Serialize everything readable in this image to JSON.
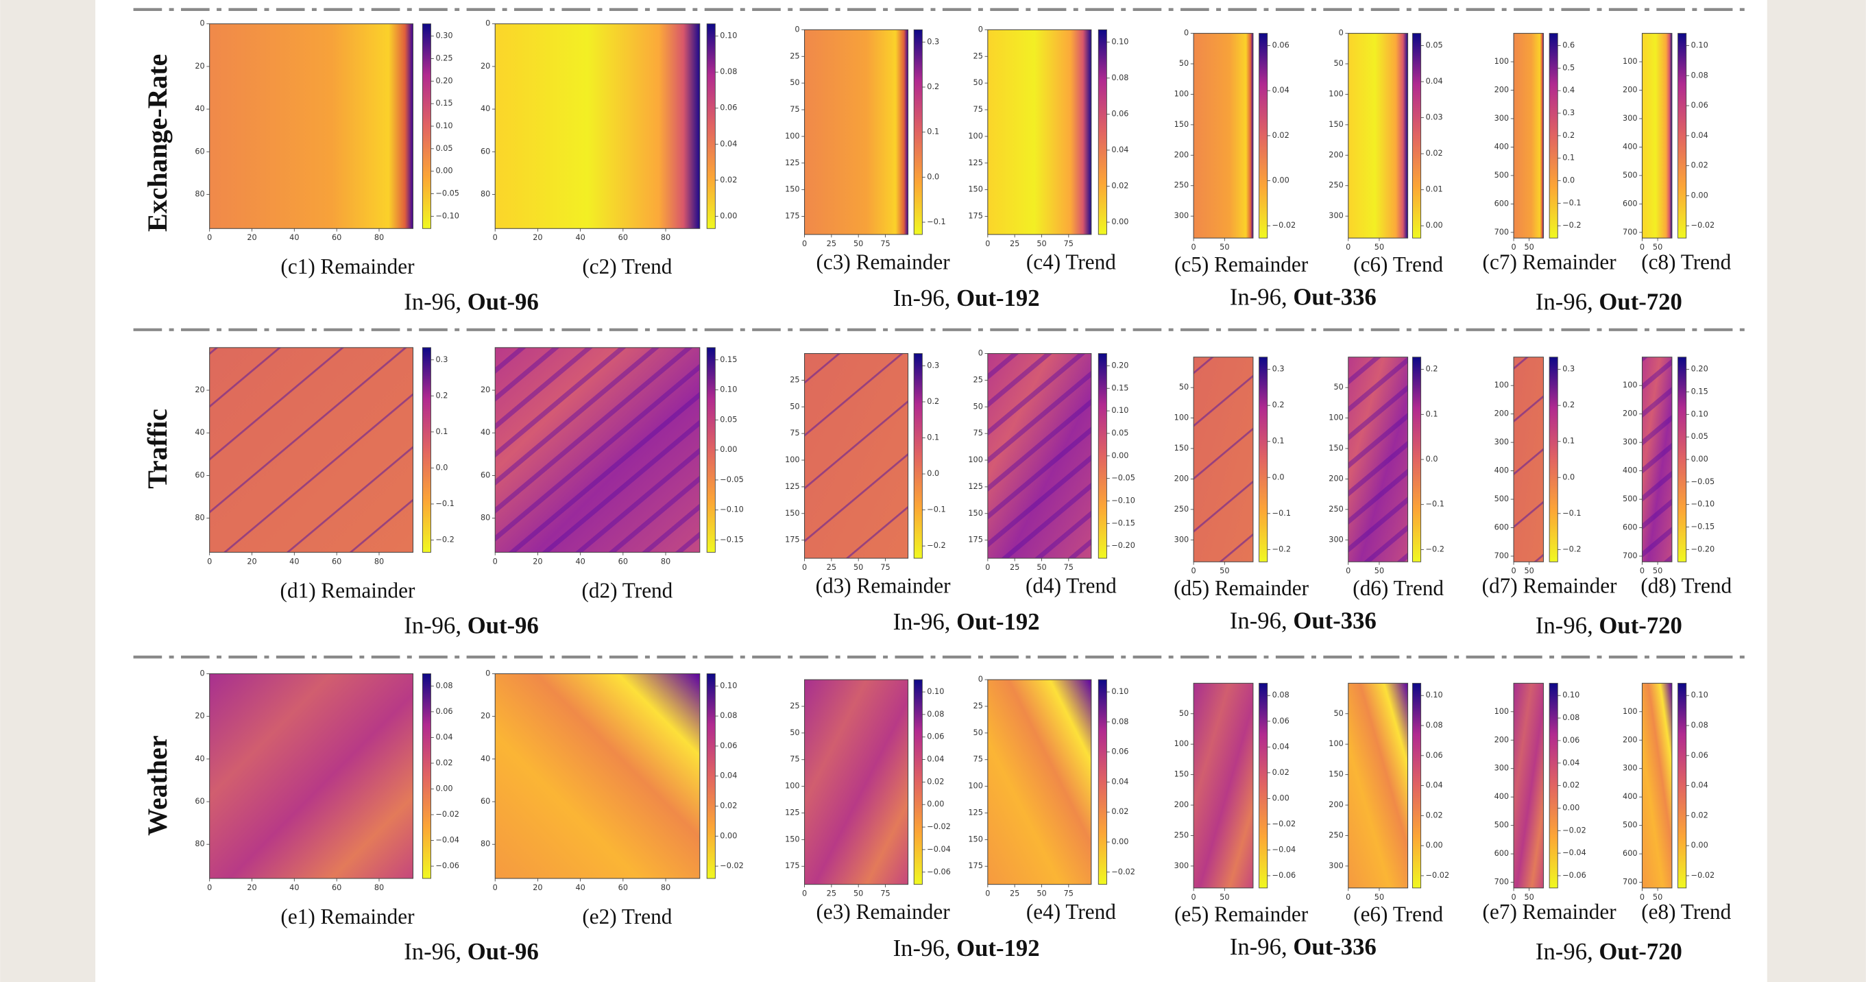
{
  "rows": [
    {
      "label": "Exchange-Rate",
      "groups": [
        {
          "setting": "In-96,",
          "horizon": "Out-96",
          "panels": [
            {
              "caption": "(c1) Remainder",
              "xticks": [
                "0",
                "20",
                "40",
                "60",
                "80"
              ],
              "yticks": [
                "0",
                "20",
                "40",
                "60",
                "80"
              ],
              "cbar": [
                "0.30",
                "0.25",
                "0.20",
                "0.15",
                "0.10",
                "0.05",
                "0.00",
                "−0.05",
                "−0.10"
              ]
            },
            {
              "caption": "(c2) Trend",
              "xticks": [
                "0",
                "20",
                "40",
                "60",
                "80"
              ],
              "yticks": [
                "0",
                "20",
                "40",
                "60",
                "80"
              ],
              "cbar": [
                "0.10",
                "0.08",
                "0.06",
                "0.04",
                "0.02",
                "0.00"
              ]
            }
          ]
        },
        {
          "setting": "In-96,",
          "horizon": "Out-192",
          "panels": [
            {
              "caption": "(c3) Remainder",
              "xticks": [
                "0",
                "25",
                "50",
                "75"
              ],
              "yticks": [
                "0",
                "25",
                "50",
                "75",
                "100",
                "125",
                "150",
                "175"
              ],
              "cbar": [
                "0.3",
                "0.2",
                "0.1",
                "0.0",
                "−0.1"
              ]
            },
            {
              "caption": "(c4) Trend",
              "xticks": [
                "0",
                "25",
                "50",
                "75"
              ],
              "yticks": [
                "0",
                "25",
                "50",
                "75",
                "100",
                "125",
                "150",
                "175"
              ],
              "cbar": [
                "0.10",
                "0.08",
                "0.06",
                "0.04",
                "0.02",
                "0.00"
              ]
            }
          ]
        },
        {
          "setting": "In-96,",
          "horizon": "Out-336",
          "panels": [
            {
              "caption": "(c5) Remainder",
              "xticks": [
                "0",
                "50"
              ],
              "yticks": [
                "0",
                "50",
                "100",
                "150",
                "200",
                "250",
                "300"
              ],
              "cbar": [
                "0.06",
                "0.04",
                "0.02",
                "0.00",
                "−0.02"
              ]
            },
            {
              "caption": "(c6) Trend",
              "xticks": [
                "0",
                "50"
              ],
              "yticks": [
                "0",
                "50",
                "100",
                "150",
                "200",
                "250",
                "300"
              ],
              "cbar": [
                "0.05",
                "0.04",
                "0.03",
                "0.02",
                "0.01",
                "0.00"
              ]
            }
          ]
        },
        {
          "setting": "In-96,",
          "horizon": "Out-720",
          "panels": [
            {
              "caption": "(c7) Remainder",
              "xticks": [
                "0",
                "50"
              ],
              "yticks": [
                "100",
                "200",
                "300",
                "400",
                "500",
                "600",
                "700"
              ],
              "cbar": [
                "0.6",
                "0.5",
                "0.4",
                "0.3",
                "0.2",
                "0.1",
                "0.0",
                "−0.1",
                "−0.2"
              ]
            },
            {
              "caption": "(c8) Trend",
              "xticks": [
                "0",
                "50"
              ],
              "yticks": [
                "100",
                "200",
                "300",
                "400",
                "500",
                "600",
                "700"
              ],
              "cbar": [
                "0.10",
                "0.08",
                "0.06",
                "0.04",
                "0.02",
                "0.00",
                "−0.02"
              ]
            }
          ]
        }
      ]
    },
    {
      "label": "Traffic",
      "groups": [
        {
          "setting": "In-96,",
          "horizon": "Out-96",
          "panels": [
            {
              "caption": "(d1) Remainder",
              "xticks": [
                "0",
                "20",
                "40",
                "60",
                "80"
              ],
              "yticks": [
                "20",
                "40",
                "60",
                "80"
              ],
              "cbar": [
                "0.3",
                "0.2",
                "0.1",
                "0.0",
                "−0.1",
                "−0.2"
              ]
            },
            {
              "caption": "(d2) Trend",
              "xticks": [
                "0",
                "20",
                "40",
                "60",
                "80"
              ],
              "yticks": [
                "20",
                "40",
                "60",
                "80"
              ],
              "cbar": [
                "0.15",
                "0.10",
                "0.05",
                "0.00",
                "−0.05",
                "−0.10",
                "−0.15"
              ]
            }
          ]
        },
        {
          "setting": "In-96,",
          "horizon": "Out-192",
          "panels": [
            {
              "caption": "(d3) Remainder",
              "xticks": [
                "0",
                "25",
                "50",
                "75"
              ],
              "yticks": [
                "25",
                "50",
                "75",
                "100",
                "125",
                "150",
                "175"
              ],
              "cbar": [
                "0.3",
                "0.2",
                "0.1",
                "0.0",
                "−0.1",
                "−0.2"
              ]
            },
            {
              "caption": "(d4) Trend",
              "xticks": [
                "0",
                "25",
                "50",
                "75"
              ],
              "yticks": [
                "0",
                "25",
                "50",
                "75",
                "100",
                "125",
                "150",
                "175"
              ],
              "cbar": [
                "0.20",
                "0.15",
                "0.10",
                "0.05",
                "0.00",
                "−0.05",
                "−0.10",
                "−0.15",
                "−0.20"
              ]
            }
          ]
        },
        {
          "setting": "In-96,",
          "horizon": "Out-336",
          "panels": [
            {
              "caption": "(d5) Remainder",
              "xticks": [
                "0",
                "50"
              ],
              "yticks": [
                "50",
                "100",
                "150",
                "200",
                "250",
                "300"
              ],
              "cbar": [
                "0.3",
                "0.2",
                "0.1",
                "0.0",
                "−0.1",
                "−0.2"
              ]
            },
            {
              "caption": "(d6) Trend",
              "xticks": [
                "0",
                "50"
              ],
              "yticks": [
                "50",
                "100",
                "150",
                "200",
                "250",
                "300"
              ],
              "cbar": [
                "0.2",
                "0.1",
                "0.0",
                "−0.1",
                "−0.2"
              ]
            }
          ]
        },
        {
          "setting": "In-96,",
          "horizon": "Out-720",
          "panels": [
            {
              "caption": "(d7) Remainder",
              "xticks": [
                "0",
                "50"
              ],
              "yticks": [
                "100",
                "200",
                "300",
                "400",
                "500",
                "600",
                "700"
              ],
              "cbar": [
                "0.3",
                "0.2",
                "0.1",
                "0.0",
                "−0.1",
                "−0.2"
              ]
            },
            {
              "caption": "(d8) Trend",
              "xticks": [
                "0",
                "50"
              ],
              "yticks": [
                "100",
                "200",
                "300",
                "400",
                "500",
                "600",
                "700"
              ],
              "cbar": [
                "0.20",
                "0.15",
                "0.10",
                "0.05",
                "0.00",
                "−0.05",
                "−0.10",
                "−0.15",
                "−0.20"
              ]
            }
          ]
        }
      ]
    },
    {
      "label": "Weather",
      "groups": [
        {
          "setting": "In-96,",
          "horizon": "Out-96",
          "panels": [
            {
              "caption": "(e1) Remainder",
              "xticks": [
                "0",
                "20",
                "40",
                "60",
                "80"
              ],
              "yticks": [
                "0",
                "20",
                "40",
                "60",
                "80"
              ],
              "cbar": [
                "0.08",
                "0.06",
                "0.04",
                "0.02",
                "0.00",
                "−0.02",
                "−0.04",
                "−0.06"
              ]
            },
            {
              "caption": "(e2) Trend",
              "xticks": [
                "0",
                "20",
                "40",
                "60",
                "80"
              ],
              "yticks": [
                "0",
                "20",
                "40",
                "60",
                "80"
              ],
              "cbar": [
                "0.10",
                "0.08",
                "0.06",
                "0.04",
                "0.02",
                "0.00",
                "−0.02"
              ]
            }
          ]
        },
        {
          "setting": "In-96,",
          "horizon": "Out-192",
          "panels": [
            {
              "caption": "(e3) Remainder",
              "xticks": [
                "0",
                "25",
                "50",
                "75"
              ],
              "yticks": [
                "25",
                "50",
                "75",
                "100",
                "125",
                "150",
                "175"
              ],
              "cbar": [
                "0.10",
                "0.08",
                "0.06",
                "0.04",
                "0.02",
                "0.00",
                "−0.02",
                "−0.04",
                "−0.06"
              ]
            },
            {
              "caption": "(e4) Trend",
              "xticks": [
                "0",
                "25",
                "50",
                "75"
              ],
              "yticks": [
                "0",
                "25",
                "50",
                "75",
                "100",
                "125",
                "150",
                "175"
              ],
              "cbar": [
                "0.10",
                "0.08",
                "0.06",
                "0.04",
                "0.02",
                "0.00",
                "−0.02"
              ]
            }
          ]
        },
        {
          "setting": "In-96,",
          "horizon": "Out-336",
          "panels": [
            {
              "caption": "(e5) Remainder",
              "xticks": [
                "0",
                "50"
              ],
              "yticks": [
                "50",
                "100",
                "150",
                "200",
                "250",
                "300"
              ],
              "cbar": [
                "0.08",
                "0.06",
                "0.04",
                "0.02",
                "0.00",
                "−0.02",
                "−0.04",
                "−0.06"
              ]
            },
            {
              "caption": "(e6) Trend",
              "xticks": [
                "0",
                "50"
              ],
              "yticks": [
                "50",
                "100",
                "150",
                "200",
                "250",
                "300"
              ],
              "cbar": [
                "0.10",
                "0.08",
                "0.06",
                "0.04",
                "0.02",
                "0.00",
                "−0.02"
              ]
            }
          ]
        },
        {
          "setting": "In-96,",
          "horizon": "Out-720",
          "panels": [
            {
              "caption": "(e7) Remainder",
              "xticks": [
                "0",
                "50"
              ],
              "yticks": [
                "100",
                "200",
                "300",
                "400",
                "500",
                "600",
                "700"
              ],
              "cbar": [
                "0.10",
                "0.08",
                "0.06",
                "0.04",
                "0.02",
                "0.00",
                "−0.02",
                "−0.04",
                "−0.06"
              ]
            },
            {
              "caption": "(e8) Trend",
              "xticks": [
                "0",
                "50"
              ],
              "yticks": [
                "100",
                "200",
                "300",
                "400",
                "500",
                "600",
                "700"
              ],
              "cbar": [
                "0.10",
                "0.08",
                "0.06",
                "0.04",
                "0.02",
                "0.00",
                "−0.02"
              ]
            }
          ]
        }
      ]
    }
  ]
}
